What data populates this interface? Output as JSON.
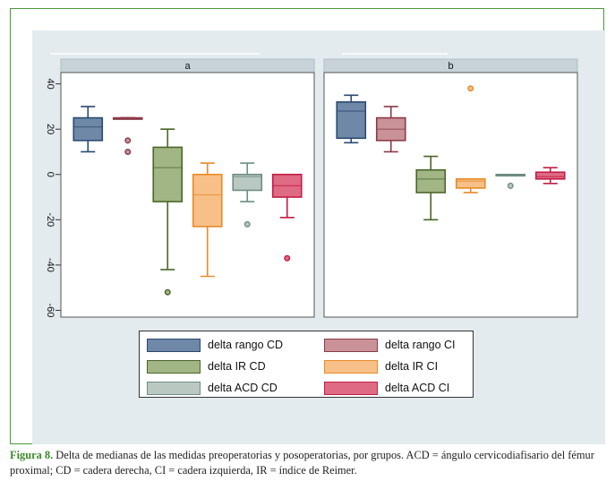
{
  "chart_data": {
    "type": "box",
    "panels": [
      {
        "label": "a",
        "series": [
          {
            "name": "delta rango CD",
            "min": 10,
            "q1": 15,
            "median": 21,
            "q3": 25,
            "max": 30,
            "outliers": []
          },
          {
            "name": "delta rango CI",
            "min": 25,
            "q1": 25,
            "median": 25,
            "q3": 25,
            "max": 25,
            "outliers": [
              15,
              10
            ]
          },
          {
            "name": "delta IR CD",
            "min": -42,
            "q1": -12,
            "median": 3,
            "q3": 12,
            "max": 20,
            "outliers": [
              -52
            ]
          },
          {
            "name": "delta IR CI",
            "min": -45,
            "q1": -23,
            "median": -9,
            "q3": 0,
            "max": 5,
            "outliers": []
          },
          {
            "name": "delta ACD CD",
            "min": -12,
            "q1": -7,
            "median": -1,
            "q3": 0,
            "max": 5,
            "outliers": [
              -22
            ]
          },
          {
            "name": "delta ACD CI",
            "min": -19,
            "q1": -10,
            "median": -5,
            "q3": 0,
            "max": 0,
            "outliers": [
              -37
            ]
          }
        ]
      },
      {
        "label": "b",
        "series": [
          {
            "name": "delta rango CD",
            "min": 14,
            "q1": 16,
            "median": 28,
            "q3": 32,
            "max": 35,
            "outliers": []
          },
          {
            "name": "delta rango CI",
            "min": 10,
            "q1": 15,
            "median": 20,
            "q3": 25,
            "max": 30,
            "outliers": []
          },
          {
            "name": "delta IR CD",
            "min": -20,
            "q1": -8,
            "median": -2,
            "q3": 2,
            "max": 8,
            "outliers": []
          },
          {
            "name": "delta IR CI",
            "min": -8,
            "q1": -6,
            "median": -3,
            "q3": -2,
            "max": -2,
            "outliers": [
              38
            ]
          },
          {
            "name": "delta ACD CD",
            "min": 0,
            "q1": 0,
            "median": 0,
            "q3": 0,
            "max": 0,
            "outliers": [
              -5
            ]
          },
          {
            "name": "delta ACD CI",
            "min": -4,
            "q1": -2,
            "median": -1,
            "q3": 1,
            "max": 3,
            "outliers": []
          }
        ]
      }
    ],
    "y_ticks": [
      40,
      20,
      0,
      -20,
      -40,
      -60
    ],
    "ylim": [
      -63,
      45
    ],
    "legend": [
      "delta rango CD",
      "delta rango CI",
      "delta IR CD",
      "delta IR CI",
      "delta ACD CD",
      "delta ACD CI"
    ],
    "legend_position": "bottom",
    "grid": false,
    "colors": {
      "delta rango CD": {
        "fill": "#6f88a8",
        "edge": "#2a4a72"
      },
      "delta rango CI": {
        "fill": "#c99298",
        "edge": "#8b3a48"
      },
      "delta IR CD": {
        "fill": "#a2b585",
        "edge": "#4a6628"
      },
      "delta IR CI": {
        "fill": "#f6c088",
        "edge": "#e98a28"
      },
      "delta ACD CD": {
        "fill": "#b9c9c2",
        "edge": "#6e8c84"
      },
      "delta ACD CI": {
        "fill": "#df6a84",
        "edge": "#c21e44"
      }
    }
  },
  "caption": {
    "label": "Figura 8.",
    "text": " Delta de medianas de las medidas preoperatorias y posoperatorias, por grupos. ACD = ángulo cervicodiafisario del fémur proximal; CD = cadera derecha, CI = cadera izquierda, IR = índice de Reimer."
  }
}
